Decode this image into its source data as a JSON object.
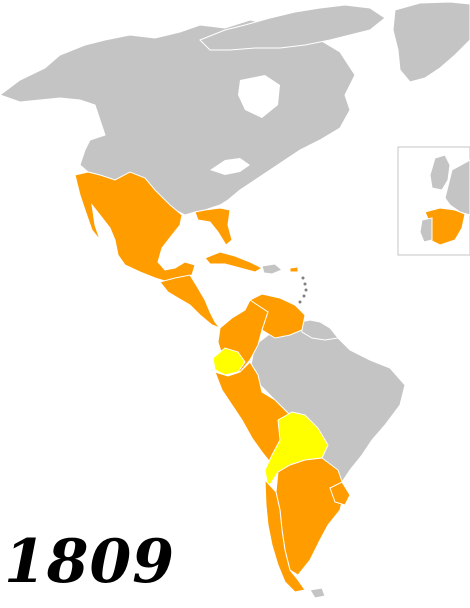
{
  "map": {
    "year": "1809",
    "colors": {
      "background": "#ffffff",
      "land_other": "#c4c4c4",
      "spanish_territory": "#ff9c00",
      "insurgent_territory": "#ffff00",
      "border": "#ffffff",
      "highlight_dark": "#808080"
    },
    "regions": [
      {
        "id": "north-america",
        "status": "other"
      },
      {
        "id": "greenland",
        "status": "other"
      },
      {
        "id": "canadian-arctic-islands",
        "status": "other"
      },
      {
        "id": "new-spain",
        "status": "spanish"
      },
      {
        "id": "florida",
        "status": "spanish"
      },
      {
        "id": "cuba",
        "status": "spanish"
      },
      {
        "id": "hispaniola",
        "status": "other"
      },
      {
        "id": "puerto-rico",
        "status": "spanish"
      },
      {
        "id": "guatemala",
        "status": "spanish"
      },
      {
        "id": "new-granada",
        "status": "spanish"
      },
      {
        "id": "venezuela",
        "status": "spanish"
      },
      {
        "id": "quito",
        "status": "insurgent"
      },
      {
        "id": "peru",
        "status": "spanish"
      },
      {
        "id": "upper-peru",
        "status": "insurgent"
      },
      {
        "id": "chile",
        "status": "spanish"
      },
      {
        "id": "rio-de-la-plata",
        "status": "spanish"
      },
      {
        "id": "brazil",
        "status": "other"
      },
      {
        "id": "guianas",
        "status": "other"
      },
      {
        "id": "falklands",
        "status": "other"
      },
      {
        "id": "iberian-peninsula-spain",
        "status": "spanish"
      },
      {
        "id": "portugal",
        "status": "other"
      },
      {
        "id": "british-isles",
        "status": "other"
      }
    ],
    "inset": {
      "content": "europe"
    }
  }
}
